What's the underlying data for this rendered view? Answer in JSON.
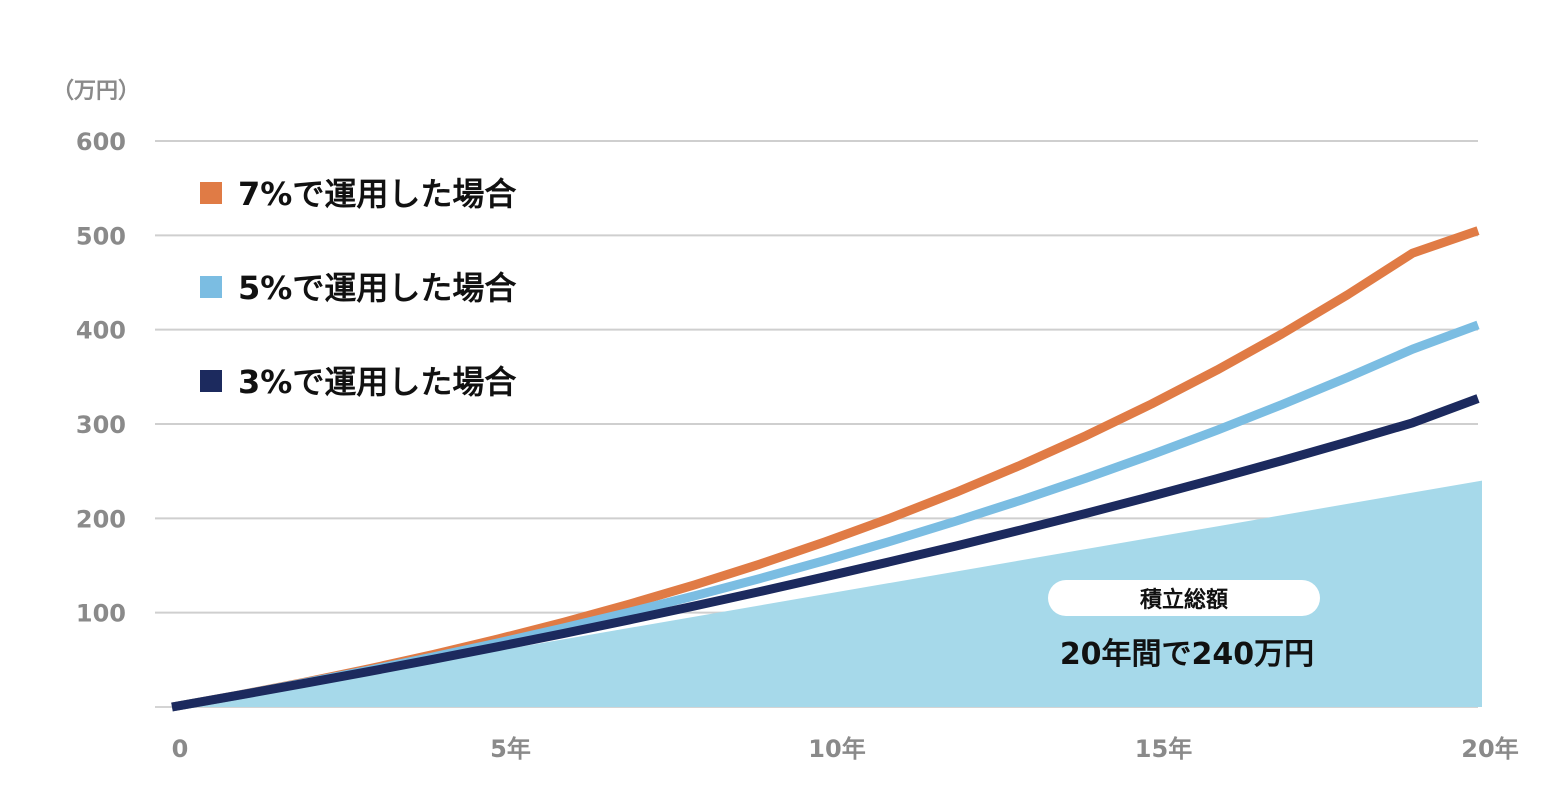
{
  "chart_data": {
    "type": "line",
    "unit_label": "（万円）",
    "x": [
      0,
      1,
      2,
      3,
      4,
      5,
      6,
      7,
      8,
      9,
      10,
      11,
      12,
      13,
      14,
      15,
      16,
      17,
      18,
      19,
      20
    ],
    "x_tick_labels": [
      {
        "x": 0,
        "label": "0"
      },
      {
        "x": 5,
        "label": "5年"
      },
      {
        "x": 10,
        "label": "10年"
      },
      {
        "x": 15,
        "label": "15年"
      },
      {
        "x": 20,
        "label": "20年"
      }
    ],
    "y_ticks": [
      100,
      200,
      300,
      400,
      500,
      600
    ],
    "xlim": [
      0,
      20
    ],
    "ylim": [
      0,
      600
    ],
    "grid": true,
    "legend_position": "top-left",
    "series": [
      {
        "name": "7%で運用した場合",
        "color": "#e07b45",
        "values": [
          0,
          12.4,
          25.8,
          40.2,
          55.6,
          72.2,
          89.9,
          109,
          129.4,
          151.4,
          175,
          200.3,
          227.4,
          256.5,
          287.7,
          321.2,
          357.1,
          395.6,
          436.9,
          481.2,
          505
        ]
      },
      {
        "name": "5%で運用した場合",
        "color": "#7bbde2",
        "values": [
          0,
          12.3,
          25.2,
          38.8,
          53.1,
          68.1,
          83.8,
          100.4,
          117.8,
          136.1,
          155.3,
          175.6,
          196.9,
          219.2,
          242.7,
          267.4,
          293.3,
          320.6,
          349.3,
          379.4,
          405
        ]
      },
      {
        "name": "3%で運用した場合",
        "color": "#1c2a5e",
        "values": [
          0,
          12.2,
          24.7,
          37.4,
          50.6,
          64.1,
          78,
          92.3,
          107.1,
          122.3,
          138,
          154.1,
          170.6,
          187.7,
          205.3,
          223.4,
          242,
          261.2,
          281,
          301.3,
          327
        ]
      }
    ],
    "contribution_area": {
      "color": "#a6d9ea",
      "values": [
        0,
        240
      ]
    },
    "annotation": {
      "title": "積立総額",
      "value": "20年間で240万円"
    }
  }
}
